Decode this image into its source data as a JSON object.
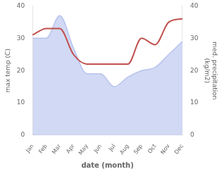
{
  "chart_data": {
    "type": "line",
    "categories": [
      "Jan",
      "Feb",
      "Mar",
      "Apr",
      "May",
      "Jun",
      "Jul",
      "Aug",
      "Sep",
      "Oct",
      "Nov",
      "Dec"
    ],
    "series": [
      {
        "type": "area",
        "color": "#b8c4ee",
        "values": [
          30,
          30,
          37,
          27,
          19,
          19,
          15,
          18,
          20,
          21,
          25,
          29
        ]
      },
      {
        "type": "line",
        "color": "#c0504d",
        "axis": "y2",
        "values": [
          31,
          33,
          33,
          25,
          22,
          22,
          22,
          22,
          30,
          28,
          35,
          36
        ]
      }
    ],
    "xlabel": "date (month)",
    "ylabel": "max temp (C)",
    "y2label": "med. precipitation\n(kg/m2)",
    "ylim": [
      0,
      40
    ],
    "yticks": [
      0,
      10,
      20,
      30,
      40
    ],
    "y2lim": [
      0,
      40
    ],
    "y2ticks": [
      0,
      10,
      20,
      30,
      40
    ],
    "grid": false
  }
}
